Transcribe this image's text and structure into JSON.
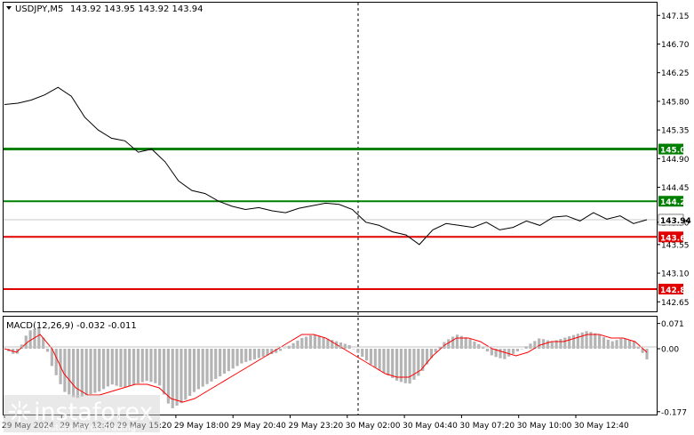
{
  "header": {
    "symbol": "USDJPY,M5",
    "ohlc": "143.92 143.95 143.92 143.94"
  },
  "macd": {
    "label": "MACD(12,26,9) -0.032 -0.011",
    "axis_labels": [
      "0.071",
      "0.00",
      "-0.177"
    ]
  },
  "price_axis": {
    "labels": [
      "147.15",
      "146.70",
      "146.25",
      "145.80",
      "145.35",
      "144.90",
      "144.45",
      "143.90",
      "143.55",
      "143.10",
      "142.65"
    ]
  },
  "levels": [
    {
      "price": "145.05",
      "color": "#008000"
    },
    {
      "price": "144.23",
      "color": "#008000"
    },
    {
      "price": "143.94",
      "color": "#ffffff"
    },
    {
      "price": "143.67",
      "color": "#e00000"
    },
    {
      "price": "142.85",
      "color": "#e00000"
    }
  ],
  "time_axis": {
    "labels": [
      "29 May 2024",
      "29 May 12:40",
      "29 May 15:20",
      "29 May 18:00",
      "29 May 20:40",
      "29 May 23:20",
      "30 May 02:00",
      "30 May 04:40",
      "30 May 07:20",
      "30 May 10:00",
      "30 May 12:40"
    ]
  },
  "watermark": {
    "brand": "instaforex",
    "tagline": "Instant Forex Trading"
  },
  "chart_data": {
    "type": "line",
    "symbol": "USDJPY,M5",
    "ylim": [
      142.6,
      147.25
    ],
    "x": [
      "29 May 2024",
      "29 May 12:40",
      "29 May 15:20",
      "29 May 18:00",
      "29 May 20:40",
      "29 May 23:20",
      "30 May 02:00",
      "30 May 04:40",
      "30 May 07:20",
      "30 May 10:00",
      "30 May 12:40"
    ],
    "price_series": [
      145.75,
      145.77,
      145.82,
      145.9,
      146.02,
      145.88,
      145.55,
      145.35,
      145.22,
      145.18,
      145.0,
      145.05,
      144.85,
      144.55,
      144.4,
      144.35,
      144.23,
      144.15,
      144.1,
      144.13,
      144.08,
      144.05,
      144.12,
      144.16,
      144.2,
      144.18,
      144.1,
      143.9,
      143.85,
      143.75,
      143.7,
      143.55,
      143.78,
      143.88,
      143.85,
      143.82,
      143.9,
      143.78,
      143.82,
      143.92,
      143.85,
      143.98,
      144.0,
      143.92,
      144.05,
      143.95,
      144.0,
      143.88,
      143.94
    ],
    "levels": [
      145.05,
      144.23,
      143.67,
      142.85
    ],
    "last_price": 143.94,
    "macd_ylim": [
      -0.177,
      0.071
    ],
    "macd_hist": [
      0.0,
      -0.02,
      0.05,
      0.06,
      -0.05,
      -0.12,
      -0.14,
      -0.13,
      -0.12,
      -0.1,
      -0.11,
      -0.1,
      -0.09,
      -0.1,
      -0.17,
      -0.15,
      -0.12,
      -0.1,
      -0.08,
      -0.06,
      -0.04,
      -0.03,
      -0.02,
      -0.01,
      0.01,
      0.03,
      0.04,
      0.03,
      0.02,
      0.01,
      -0.02,
      -0.05,
      -0.07,
      -0.09,
      -0.1,
      -0.07,
      -0.02,
      0.02,
      0.04,
      0.03,
      0.01,
      -0.02,
      -0.03,
      -0.01,
      0.01,
      0.03,
      0.02,
      0.03,
      0.04,
      0.05,
      0.04,
      0.02,
      0.03,
      0.02,
      -0.03
    ],
    "macd_signal": [
      0.0,
      -0.01,
      0.02,
      0.04,
      0.0,
      -0.07,
      -0.11,
      -0.13,
      -0.13,
      -0.12,
      -0.11,
      -0.1,
      -0.1,
      -0.11,
      -0.14,
      -0.15,
      -0.14,
      -0.12,
      -0.1,
      -0.08,
      -0.06,
      -0.04,
      -0.02,
      0.0,
      0.02,
      0.04,
      0.04,
      0.03,
      0.01,
      -0.01,
      -0.03,
      -0.05,
      -0.07,
      -0.08,
      -0.08,
      -0.06,
      -0.02,
      0.01,
      0.03,
      0.03,
      0.02,
      0.0,
      -0.01,
      -0.02,
      -0.01,
      0.01,
      0.02,
      0.02,
      0.03,
      0.04,
      0.04,
      0.03,
      0.03,
      0.02,
      -0.01
    ]
  }
}
